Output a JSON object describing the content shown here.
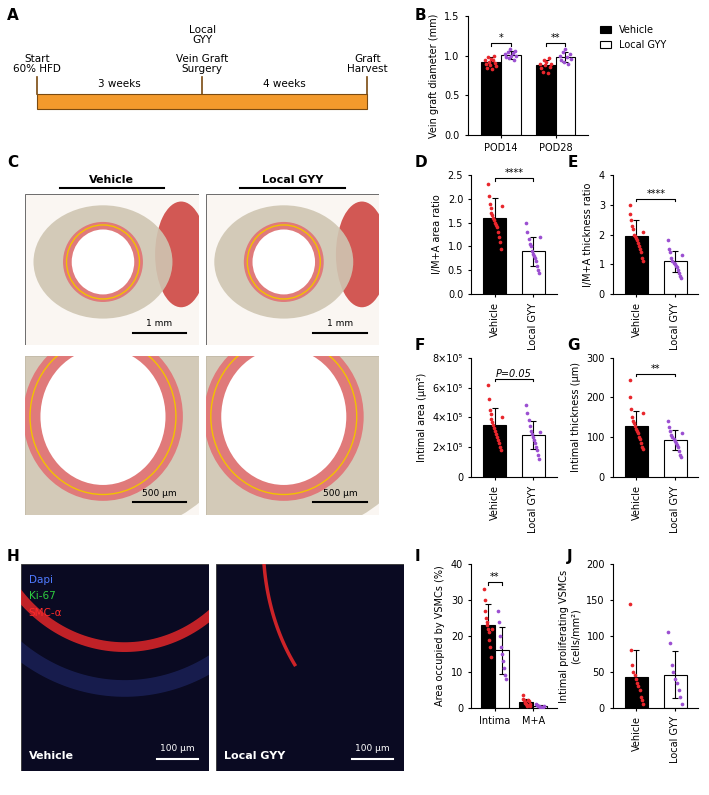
{
  "timeline": {
    "label": "A",
    "color": "#f39a2c",
    "events": [
      {
        "labels": [
          "Start\n60% HFD"
        ]
      },
      {
        "labels": [
          "Vein Graft\nSurgery",
          "Local\nGYY"
        ]
      },
      {
        "labels": [
          "Graft\nHarvest"
        ]
      }
    ],
    "intervals": [
      "3 weeks",
      "4 weeks"
    ]
  },
  "histology": {
    "label": "C",
    "columns": [
      "Vehicle",
      "Local GYY"
    ],
    "scale_bars": [
      [
        "1 mm",
        "1 mm"
      ],
      [
        "500 µm",
        "500 µm"
      ]
    ]
  },
  "fluorescence": {
    "label": "H",
    "panels": [
      "Vehicle",
      "Local GYY"
    ],
    "scale_bar": "100 µm",
    "channels": [
      {
        "name": "Dapi",
        "color": "#4f7bff"
      },
      {
        "name": "Ki-67",
        "color": "#2ecc40"
      },
      {
        "name": "SMC-α",
        "color": "#ff2a2a"
      }
    ]
  },
  "chart_data": [
    {
      "type": "bar",
      "label": "B",
      "y_label": "Vein graft diameter (mm)",
      "categories": [
        "POD14",
        "POD28"
      ],
      "ylim": [
        0,
        1.5
      ],
      "yticks": [
        {
          "value": 0,
          "label": "0.0"
        },
        0.5,
        {
          "value": 1.0,
          "label": "1.0"
        },
        1.5
      ],
      "legend": "upper left",
      "series": [
        {
          "name": "Vehicle",
          "color": "#000000",
          "point_color": "#e8262c",
          "values": [
            0.92,
            0.88
          ],
          "errors": [
            0.06,
            0.07
          ],
          "points": [
            [
              0.95,
              0.9,
              0.85,
              0.98,
              0.92,
              0.88,
              0.96,
              0.83,
              0.94,
              0.99,
              0.91,
              0.87
            ],
            [
              0.9,
              0.85,
              0.8,
              0.95,
              0.88,
              0.92,
              0.78,
              0.97,
              0.86,
              0.89
            ]
          ]
        },
        {
          "name": "Local GYY",
          "color": "#ffffff",
          "point_color": "#9b4fd1",
          "values": [
            1.01,
            0.98
          ],
          "errors": [
            0.05,
            0.06
          ],
          "points": [
            [
              1.02,
              0.98,
              1.05,
              0.97,
              1.08,
              1.0,
              1.03,
              0.95,
              1.06,
              0.99
            ],
            [
              1.0,
              0.95,
              1.05,
              0.92,
              1.08,
              0.98,
              0.9,
              1.02,
              0.96
            ]
          ]
        }
      ],
      "significance": [
        {
          "text": "*",
          "category": 0
        },
        {
          "text": "**",
          "category": 1
        }
      ]
    },
    {
      "type": "bar",
      "label": "D",
      "y_label": "I/M+A area ratio",
      "categories": [
        "Vehicle",
        "Local GYY"
      ],
      "ylim": [
        0,
        2.5
      ],
      "yticks": [
        {
          "value": 0,
          "label": "0.0"
        },
        0.5,
        {
          "value": 1.0,
          "label": "1.0"
        },
        1.5,
        {
          "value": 2.0,
          "label": "2.0"
        },
        2.5
      ],
      "values": [
        1.6,
        0.9
      ],
      "errors": [
        0.42,
        0.3
      ],
      "colors": [
        "#000000",
        "#ffffff"
      ],
      "point_colors": [
        "#e8262c",
        "#9b4fd1"
      ],
      "points": [
        [
          2.3,
          2.05,
          1.9,
          1.8,
          1.7,
          1.65,
          1.6,
          1.55,
          1.5,
          1.45,
          1.4,
          1.3,
          1.2,
          1.1,
          0.95,
          1.85
        ],
        [
          1.5,
          1.3,
          1.15,
          1.05,
          1.0,
          0.9,
          0.85,
          0.8,
          0.75,
          0.7,
          0.6,
          0.5,
          0.45,
          1.2
        ]
      ],
      "significance": [
        {
          "text": "****"
        }
      ]
    },
    {
      "type": "bar",
      "label": "E",
      "y_label": "I/M+A thickness ratio",
      "categories": [
        "Vehicle",
        "Local GYY"
      ],
      "ylim": [
        0,
        4
      ],
      "yticks": [
        0,
        1,
        2,
        3,
        4
      ],
      "values": [
        1.95,
        1.1
      ],
      "errors": [
        0.55,
        0.35
      ],
      "colors": [
        "#000000",
        "#ffffff"
      ],
      "point_colors": [
        "#e8262c",
        "#9b4fd1"
      ],
      "points": [
        [
          3.0,
          2.7,
          2.5,
          2.3,
          2.2,
          2.0,
          1.95,
          1.9,
          1.8,
          1.7,
          1.6,
          1.5,
          1.4,
          1.2,
          1.1,
          2.1
        ],
        [
          1.8,
          1.5,
          1.4,
          1.2,
          1.1,
          1.05,
          1.0,
          0.95,
          0.9,
          0.8,
          0.7,
          0.6,
          0.55,
          1.3
        ]
      ],
      "significance": [
        {
          "text": "****"
        }
      ]
    },
    {
      "type": "bar",
      "label": "F",
      "y_label": "Intimal area (µm²)",
      "categories": [
        "Vehicle",
        "Local GYY"
      ],
      "ylim": [
        0,
        800000
      ],
      "yticks": [
        0,
        {
          "value": 200000,
          "label": "2×10⁵"
        },
        {
          "value": 400000,
          "label": "4×10⁵"
        },
        {
          "value": 600000,
          "label": "6×10⁵"
        },
        {
          "value": 800000,
          "label": "8×10⁵"
        }
      ],
      "values": [
        350000,
        280000
      ],
      "errors": [
        110000,
        95000
      ],
      "colors": [
        "#000000",
        "#ffffff"
      ],
      "point_colors": [
        "#e8262c",
        "#9b4fd1"
      ],
      "points": [
        [
          620000,
          520000,
          450000,
          420000,
          390000,
          370000,
          350000,
          330000,
          310000,
          290000,
          270000,
          250000,
          230000,
          200000,
          180000,
          400000
        ],
        [
          480000,
          430000,
          380000,
          340000,
          310000,
          290000,
          270000,
          250000,
          230000,
          200000,
          180000,
          150000,
          120000,
          300000
        ]
      ],
      "significance": [
        {
          "text": "P=0.05"
        }
      ]
    },
    {
      "type": "bar",
      "label": "G",
      "y_label": "Intimal thickness (µm)",
      "categories": [
        "Vehicle",
        "Local GYY"
      ],
      "ylim": [
        0,
        300
      ],
      "yticks": [
        0,
        100,
        200,
        300
      ],
      "values": [
        128,
        92
      ],
      "errors": [
        38,
        25
      ],
      "colors": [
        "#000000",
        "#ffffff"
      ],
      "point_colors": [
        "#e8262c",
        "#9b4fd1"
      ],
      "points": [
        [
          245,
          200,
          170,
          150,
          140,
          135,
          128,
          122,
          115,
          110,
          100,
          95,
          85,
          75,
          70,
          160
        ],
        [
          140,
          125,
          115,
          105,
          100,
          95,
          90,
          85,
          80,
          75,
          65,
          55,
          50,
          110
        ]
      ],
      "significance": [
        {
          "text": "**"
        }
      ]
    },
    {
      "type": "bar",
      "label": "I",
      "y_label": "Area occupied by VSMCs (%)",
      "categories": [
        "Intima",
        "M+A"
      ],
      "ylim": [
        0,
        40
      ],
      "yticks": [
        0,
        10,
        20,
        30,
        40
      ],
      "series": [
        {
          "color": "#000000",
          "point_color": "#e8262c",
          "values": [
            23,
            1.5
          ],
          "errors": [
            6,
            1
          ],
          "points": [
            [
              33,
              30,
              27,
              25,
              24,
              23,
              22,
              21,
              19,
              17,
              14,
              22
            ],
            [
              3.5,
              2.5,
              2,
              1.5,
              1.2,
              1,
              0.8,
              0.5,
              2.2,
              1.8,
              0.3,
              1.0
            ]
          ]
        },
        {
          "color": "#ffffff",
          "point_color": "#9b4fd1",
          "values": [
            16,
            0.3
          ],
          "errors": [
            6.5,
            0.3
          ],
          "points": [
            [
              27,
              24,
              20,
              17,
              15,
              13,
              11,
              9,
              8
            ],
            [
              1,
              0.6,
              0.4,
              0.3,
              0.2,
              0.1,
              0,
              0.2,
              0.5
            ]
          ]
        }
      ],
      "significance": [
        {
          "text": "**",
          "category": 0
        }
      ]
    },
    {
      "type": "bar",
      "label": "J",
      "y_label": "Intimal proliferating VSMCs\n(cells/mm²)",
      "categories": [
        "Vehicle",
        "Local GYY"
      ],
      "ylim": [
        0,
        200
      ],
      "yticks": [
        0,
        50,
        100,
        150,
        200
      ],
      "values": [
        43,
        46
      ],
      "errors": [
        37,
        33
      ],
      "colors": [
        "#000000",
        "#ffffff"
      ],
      "point_colors": [
        "#e8262c",
        "#9b4fd1"
      ],
      "points": [
        [
          145,
          80,
          60,
          50,
          45,
          40,
          35,
          30,
          25,
          15,
          10,
          5
        ],
        [
          105,
          90,
          60,
          50,
          40,
          35,
          25,
          15,
          5
        ]
      ]
    }
  ]
}
